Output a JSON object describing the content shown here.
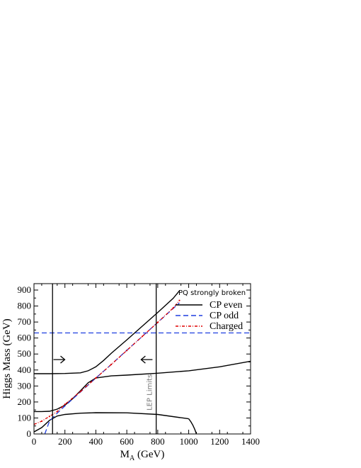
{
  "chart_data": {
    "type": "line",
    "title": "",
    "xlabel_main": "M",
    "xlabel_sub": "A",
    "xlabel_unit": " (GeV)",
    "ylabel": "Higgs Mass (GeV)",
    "xlim": [
      0,
      1400
    ],
    "ylim": [
      0,
      940
    ],
    "xticks": [
      0,
      200,
      400,
      600,
      800,
      1000,
      1200,
      1400
    ],
    "yticks": [
      0,
      100,
      200,
      300,
      400,
      500,
      600,
      700,
      800,
      900
    ],
    "legend": {
      "title": "PQ strongly broken",
      "position": "top-right",
      "entries": [
        {
          "label": "CP even",
          "color": "#000000",
          "style": "solid"
        },
        {
          "label": "CP odd",
          "color": "#1f3fe0",
          "style": "dashed"
        },
        {
          "label": "Charged",
          "color": "#e00000",
          "style": "dashdot"
        }
      ]
    },
    "series": [
      {
        "name": "CP even",
        "color": "#000000",
        "style": "solid",
        "x": [
          0,
          50,
          100,
          150,
          200,
          300,
          400,
          600,
          800,
          1000,
          1200,
          1400
        ],
        "y": [
          13,
          40,
          85,
          112,
          122,
          130,
          133,
          132,
          122,
          95,
          null,
          null
        ]
      },
      {
        "name": "CP even",
        "color": "#000000",
        "style": "solid",
        "x": [
          0,
          50,
          100,
          150,
          200,
          250,
          300,
          350,
          400,
          500,
          600,
          800,
          1000,
          1200,
          1400
        ],
        "y": [
          140,
          140,
          142,
          155,
          180,
          220,
          270,
          320,
          350,
          363,
          368,
          380,
          395,
          420,
          455
        ]
      },
      {
        "name": "CP even",
        "color": "#000000",
        "style": "solid",
        "x": [
          0,
          100,
          200,
          300,
          350,
          400,
          450,
          500,
          600,
          700,
          800,
          900,
          940
        ],
        "y": [
          377,
          377,
          378,
          382,
          395,
          420,
          460,
          505,
          588,
          674,
          760,
          848,
          895
        ]
      },
      {
        "name": "CP odd",
        "color": "#1f3fe0",
        "style": "dashed",
        "x": [
          70,
          100,
          150,
          200,
          300,
          400,
          500,
          600,
          700,
          800,
          900,
          940
        ],
        "y": [
          0,
          80,
          130,
          175,
          262,
          350,
          435,
          523,
          610,
          698,
          785,
          820
        ]
      },
      {
        "name": "CP odd",
        "color": "#1f3fe0",
        "style": "dashed",
        "x": [
          0,
          1400
        ],
        "y": [
          632,
          632
        ]
      },
      {
        "name": "Charged",
        "color": "#e00000",
        "style": "dashdot",
        "x": [
          0,
          50,
          100,
          150,
          200,
          300,
          400,
          500,
          600,
          700,
          800,
          900,
          940
        ],
        "y": [
          60,
          80,
          110,
          140,
          185,
          265,
          350,
          435,
          522,
          610,
          698,
          788,
          835
        ]
      }
    ],
    "vertical_lines": [
      120,
      790
    ],
    "annotations": {
      "lep": "LEP Limits",
      "arrow_right_at": {
        "x": 135,
        "y": 465
      },
      "arrow_left_at": {
        "x": 775,
        "y": 465
      }
    }
  }
}
